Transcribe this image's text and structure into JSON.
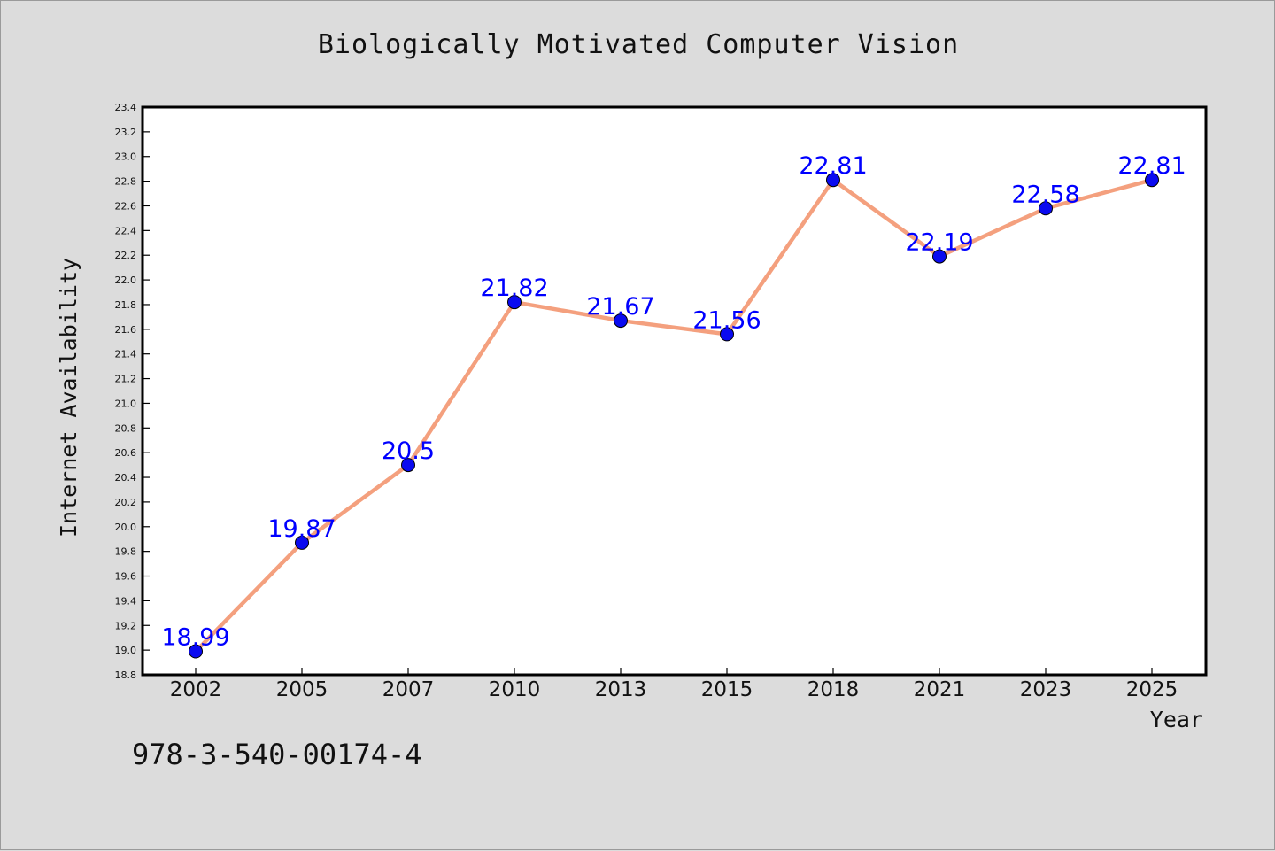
{
  "chart_data": {
    "type": "line",
    "title": "Biologically Motivated Computer Vision",
    "xlabel": "Year",
    "ylabel": "Internet Availability",
    "categories": [
      "2002",
      "2005",
      "2007",
      "2010",
      "2013",
      "2015",
      "2018",
      "2021",
      "2023",
      "2025"
    ],
    "series": [
      {
        "values": [
          18.99,
          19.87,
          20.5,
          21.82,
          21.67,
          21.56,
          22.81,
          22.19,
          22.58,
          22.81
        ],
        "line_color": "#f4a07e",
        "marker_color": "#0a0af0",
        "label_color": "#0000ff"
      }
    ],
    "ylim": [
      18.8,
      23.4
    ],
    "ytick_step": 0.2,
    "grid": false,
    "legend": "none"
  },
  "annotation": {
    "isbn": "978-3-540-00174-4"
  },
  "colors": {
    "background": "#dcdcdc",
    "plot_background": "#ffffff",
    "frame": "#000000"
  }
}
